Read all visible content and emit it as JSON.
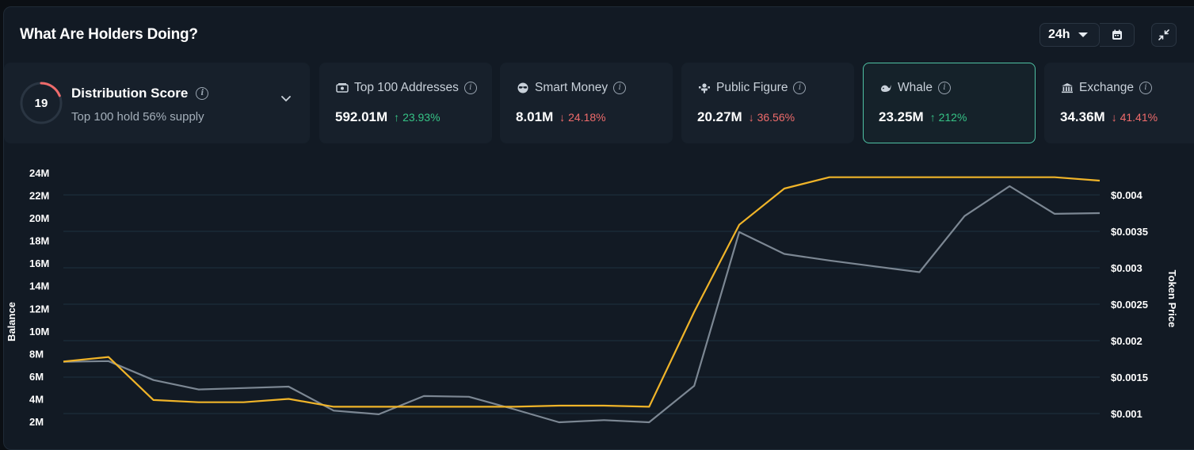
{
  "header": {
    "title": "What Are Holders Doing?",
    "range_label": "24h",
    "calendar_icon": "calendar-icon",
    "collapse_icon": "collapse-icon"
  },
  "distribution": {
    "score": "19",
    "score_fraction": 0.19,
    "title": "Distribution Score",
    "subtitle": "Top 100 hold 56% supply",
    "ring_color": "#ef6b6b"
  },
  "cards": [
    {
      "label": "Top 100 Addresses",
      "value": "592.01M",
      "change": "23.93%",
      "direction": "up",
      "icon": "money-icon",
      "active": false
    },
    {
      "label": "Smart Money",
      "value": "8.01M",
      "change": "24.18%",
      "direction": "down",
      "icon": "sunglasses-icon",
      "active": false
    },
    {
      "label": "Public Figure",
      "value": "20.27M",
      "change": "36.56%",
      "direction": "down",
      "icon": "public-figure-icon",
      "active": false
    },
    {
      "label": "Whale",
      "value": "23.25M",
      "change": "212%",
      "direction": "up",
      "icon": "whale-icon",
      "active": true
    },
    {
      "label": "Exchange",
      "value": "34.36M",
      "change": "41.41%",
      "direction": "down",
      "icon": "bank-icon",
      "active": false
    }
  ],
  "colors": {
    "up": "#36c386",
    "down": "#ef6b6b",
    "balance_line": "#f0b429",
    "price_line": "#7c8793",
    "active_border": "#4fc2a4"
  },
  "chart_data": {
    "type": "line",
    "left_axis": {
      "label": "Balance",
      "ticks": [
        "24M",
        "22M",
        "20M",
        "18M",
        "16M",
        "14M",
        "12M",
        "10M",
        "8M",
        "6M",
        "4M",
        "2M"
      ],
      "ticks_values": [
        24,
        22,
        20,
        18,
        16,
        14,
        12,
        10,
        8,
        6,
        4,
        2
      ],
      "ylim": [
        0,
        24
      ]
    },
    "right_axis": {
      "label": "Token Price",
      "ticks": [
        "$0.004",
        "$0.0035",
        "$0.003",
        "$0.0025",
        "$0.002",
        "$0.0015",
        "$0.001"
      ],
      "ticks_values": [
        0.004,
        0.0035,
        0.003,
        0.0025,
        0.002,
        0.0015,
        0.001
      ],
      "ylim": [
        0.00095,
        0.0043
      ]
    },
    "grid": true,
    "series": [
      {
        "axis": "left",
        "color": "#f0b429",
        "values": [
          7.3,
          7.7,
          3.9,
          3.7,
          3.7,
          4.0,
          3.3,
          3.3,
          3.3,
          3.3,
          3.3,
          3.4,
          3.4,
          3.3,
          11.7,
          19.4,
          22.6,
          23.6,
          23.6,
          23.6,
          23.6,
          23.6,
          23.6,
          23.3
        ]
      },
      {
        "axis": "right",
        "color": "#7c8793",
        "values": [
          0.00171,
          0.00172,
          0.00146,
          0.00133,
          0.00135,
          0.00137,
          0.00104,
          0.00099,
          0.00124,
          0.00123,
          0.00106,
          0.00088,
          0.00091,
          0.00088,
          0.00138,
          0.00349,
          0.00319,
          0.0031,
          0.00302,
          0.00294,
          0.00371,
          0.00412,
          0.00374,
          0.00375
        ]
      }
    ]
  }
}
